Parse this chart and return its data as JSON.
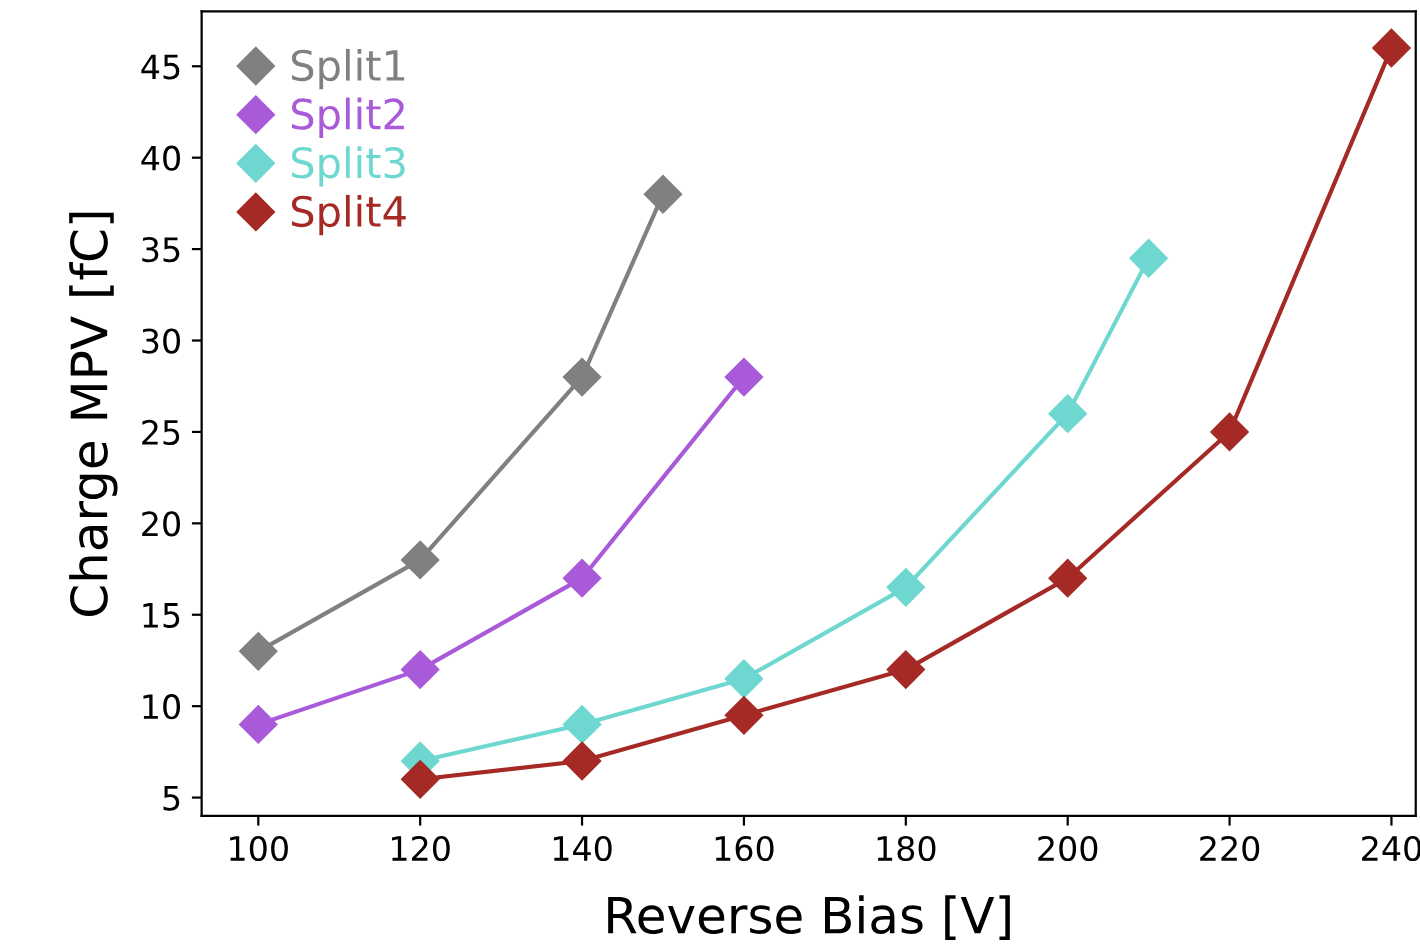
{
  "chart_data": {
    "type": "line",
    "xlabel": "Reverse Bias [V]",
    "ylabel": "Charge MPV [fC]",
    "xlim": [
      93,
      243
    ],
    "xticks": [
      100,
      120,
      140,
      160,
      180,
      200,
      220,
      240
    ],
    "ylim": [
      4,
      48
    ],
    "yticks": [
      5,
      10,
      15,
      20,
      25,
      30,
      35,
      40,
      45
    ],
    "marker": "diamond",
    "line_style": "solid",
    "grid": false,
    "legend": "top left",
    "series": [
      {
        "name": "Split1",
        "color": "#808080",
        "x": [
          100,
          120,
          140,
          150
        ],
        "values": [
          13,
          18,
          28,
          38
        ]
      },
      {
        "name": "Split2",
        "color": "#a85ad8",
        "x": [
          100,
          120,
          140,
          160
        ],
        "values": [
          9,
          12,
          17,
          28
        ]
      },
      {
        "name": "Split3",
        "color": "#6ed8d0",
        "x": [
          120,
          140,
          160,
          180,
          200,
          210
        ],
        "values": [
          7,
          9,
          11.5,
          16.5,
          26,
          34.5
        ]
      },
      {
        "name": "Split4",
        "color": "#a52a25",
        "x": [
          120,
          140,
          160,
          180,
          200,
          220,
          240
        ],
        "values": [
          6,
          7,
          9.5,
          12,
          17,
          25,
          46
        ]
      }
    ]
  }
}
